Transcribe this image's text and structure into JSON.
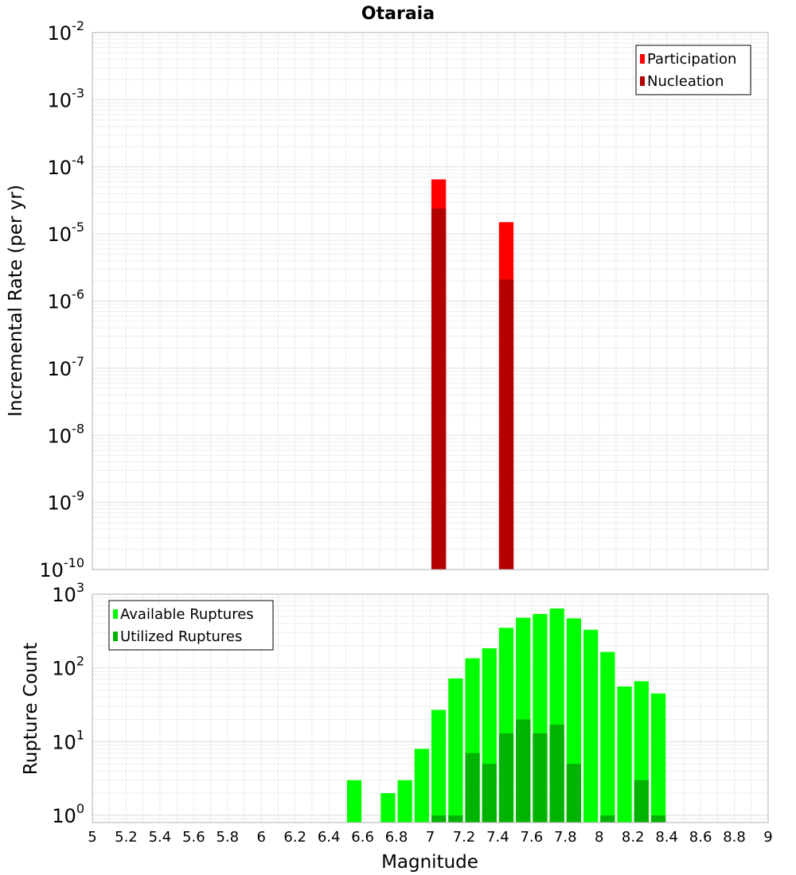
{
  "chart_data": [
    {
      "type": "bar",
      "title": "Otaraia",
      "ylabel": "Incremental Rate (per yr)",
      "xlabel": "",
      "y_scale": "log",
      "ylim": [
        1e-10,
        0.01
      ],
      "xlim": [
        5,
        9
      ],
      "bin_width": 0.1,
      "legend_position": "top-right",
      "y_tick_labels": [
        {
          "value": 1e-10,
          "base": "10",
          "exp": "-10"
        },
        {
          "value": 1e-09,
          "base": "10",
          "exp": "-9"
        },
        {
          "value": 1e-08,
          "base": "10",
          "exp": "-8"
        },
        {
          "value": 1e-07,
          "base": "10",
          "exp": "-7"
        },
        {
          "value": 1e-06,
          "base": "10",
          "exp": "-6"
        },
        {
          "value": 1e-05,
          "base": "10",
          "exp": "-5"
        },
        {
          "value": 0.0001,
          "base": "10",
          "exp": "-4"
        },
        {
          "value": 0.001,
          "base": "10",
          "exp": "-3"
        },
        {
          "value": 0.01,
          "base": "10",
          "exp": "-2"
        }
      ],
      "series": [
        {
          "name": "Participation",
          "color": "#ff0000",
          "x": [
            7.05,
            7.45
          ],
          "values": [
            6.5e-05,
            1.5e-05
          ]
        },
        {
          "name": "Nucleation",
          "color": "#b30000",
          "x": [
            7.05,
            7.45
          ],
          "values": [
            2.4e-05,
            2.1e-06
          ]
        }
      ]
    },
    {
      "type": "bar",
      "title": "",
      "ylabel": "Rupture Count",
      "xlabel": "Magnitude",
      "y_scale": "log",
      "ylim": [
        0.8,
        1000
      ],
      "xlim": [
        5,
        9
      ],
      "bin_width": 0.1,
      "legend_position": "top-left",
      "y_tick_labels": [
        {
          "value": 1,
          "base": "10",
          "exp": "0"
        },
        {
          "value": 10,
          "base": "10",
          "exp": "1"
        },
        {
          "value": 100,
          "base": "10",
          "exp": "2"
        },
        {
          "value": 1000,
          "base": "10",
          "exp": "3"
        }
      ],
      "x_tick_labels": [
        "5",
        "5.2",
        "5.4",
        "5.6",
        "5.8",
        "6",
        "6.2",
        "6.4",
        "6.6",
        "6.8",
        "7",
        "7.2",
        "7.4",
        "7.6",
        "7.8",
        "8",
        "8.2",
        "8.4",
        "8.6",
        "8.8",
        "9"
      ],
      "series": [
        {
          "name": "Available Ruptures",
          "color": "#00ff00",
          "x": [
            6.55,
            6.75,
            6.85,
            6.95,
            7.05,
            7.15,
            7.25,
            7.35,
            7.45,
            7.55,
            7.65,
            7.75,
            7.85,
            7.95,
            8.05,
            8.15,
            8.25,
            8.35
          ],
          "values": [
            3,
            2,
            3,
            8,
            27,
            72,
            135,
            185,
            350,
            480,
            540,
            640,
            470,
            330,
            165,
            56,
            66,
            45
          ]
        },
        {
          "name": "Utilized Ruptures",
          "color": "#00b300",
          "x": [
            7.05,
            7.15,
            7.25,
            7.35,
            7.45,
            7.55,
            7.65,
            7.75,
            7.85,
            8.05,
            8.25,
            8.35
          ],
          "values": [
            1,
            1,
            7,
            5,
            13,
            20,
            13,
            17,
            5,
            1,
            3,
            1
          ]
        }
      ]
    }
  ]
}
